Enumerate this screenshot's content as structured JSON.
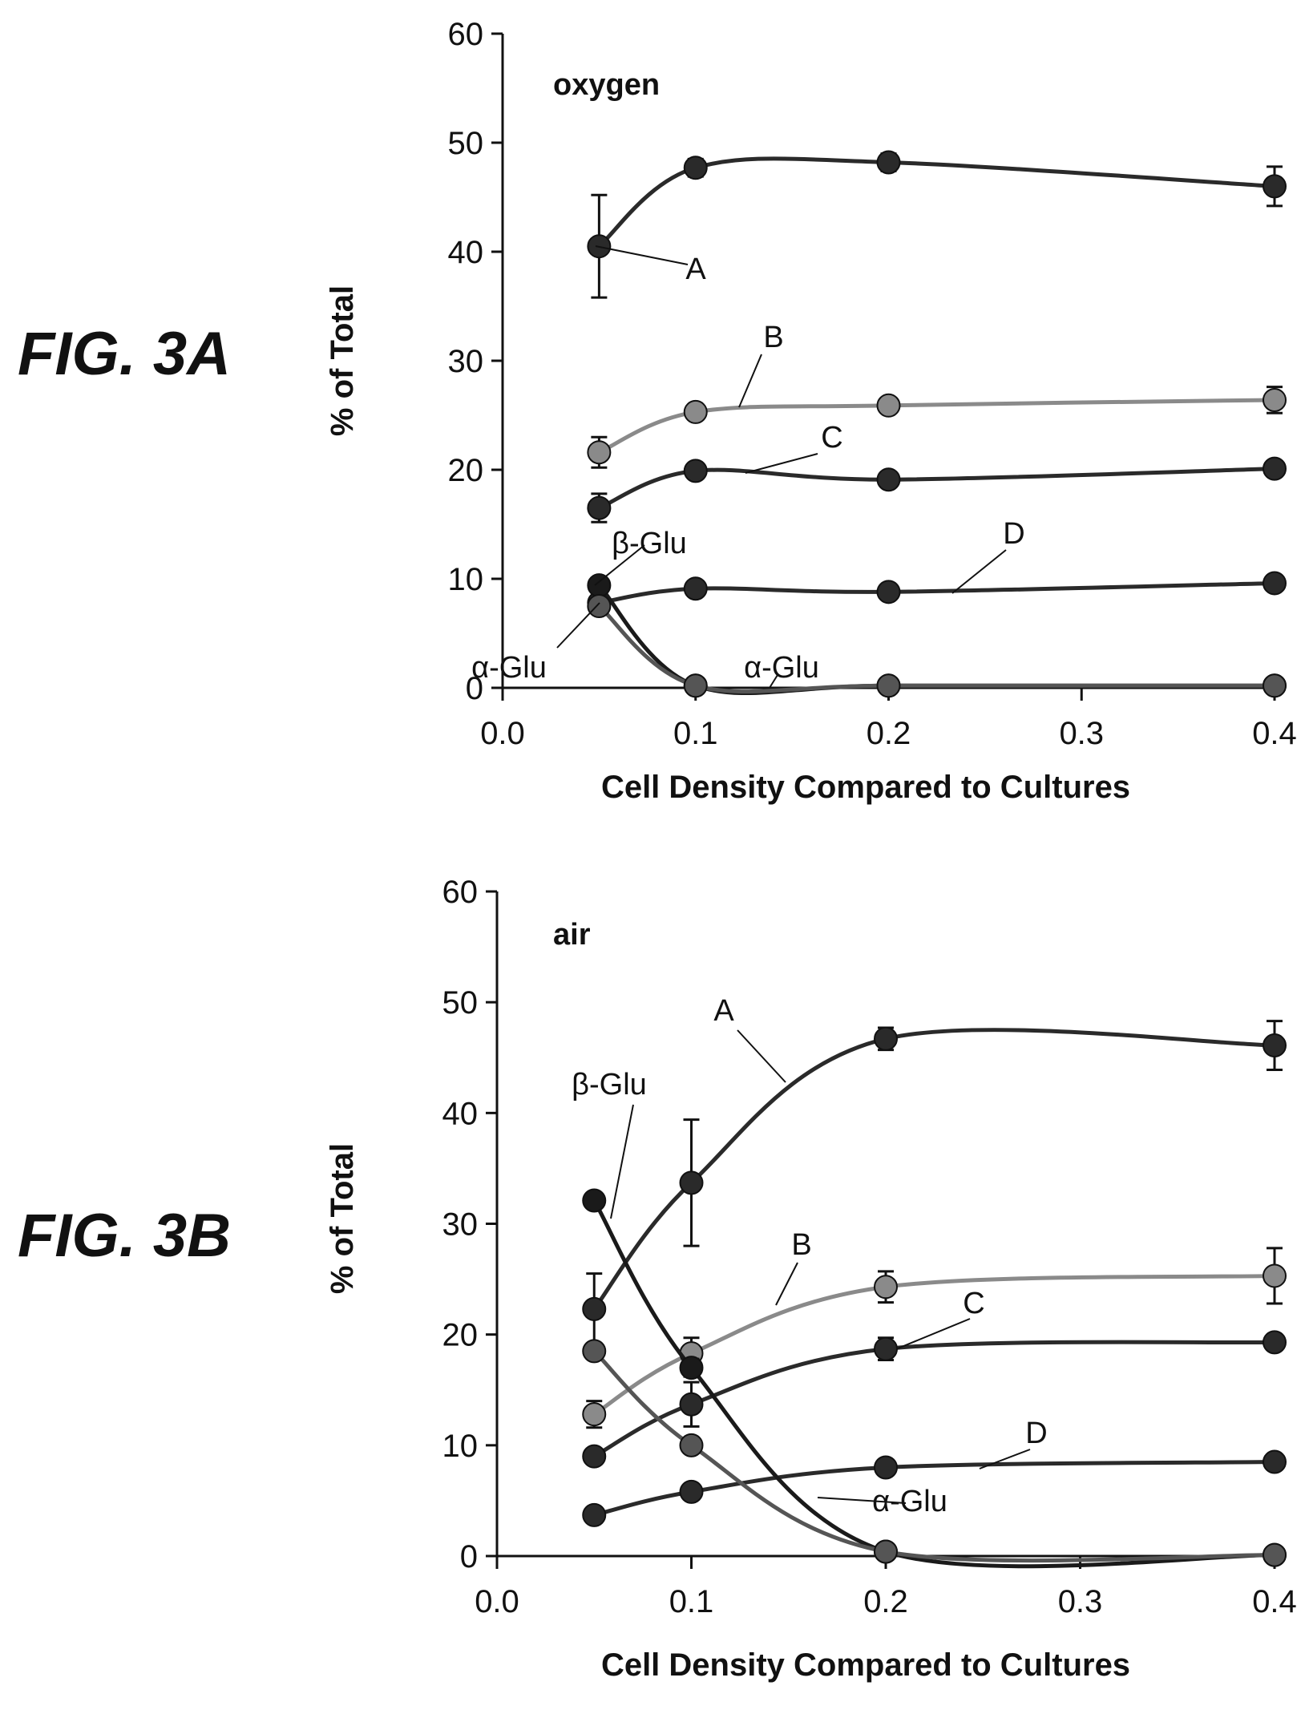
{
  "figures": {
    "a": {
      "label": "FIG. 3A"
    },
    "b": {
      "label": "FIG. 3B"
    }
  },
  "chart_data": [
    {
      "type": "line",
      "panel_label": "oxygen",
      "xlabel": "Cell Density Compared to Cultures",
      "ylabel": "% of Total",
      "xlim": [
        0,
        0.4
      ],
      "ylim": [
        0,
        60
      ],
      "xticks": [
        "0.0",
        "0.1",
        "0.2",
        "0.3",
        "0.4"
      ],
      "yticks": [
        "0",
        "10",
        "20",
        "30",
        "40",
        "50",
        "60"
      ],
      "grid": false,
      "legend": "none",
      "x": [
        0.05,
        0.1,
        0.2,
        0.4
      ],
      "series": [
        {
          "name": "A",
          "color": "#2a2a2a",
          "values": [
            40.5,
            47.7,
            48.2,
            46.0
          ],
          "errors": [
            4.7,
            0.8,
            0.8,
            1.8
          ]
        },
        {
          "name": "B",
          "color": "#8a8a8a",
          "values": [
            21.6,
            25.3,
            25.9,
            26.4
          ],
          "errors": [
            1.4,
            0.5,
            0.4,
            1.2
          ]
        },
        {
          "name": "C",
          "color": "#2a2a2a",
          "values": [
            16.5,
            19.9,
            19.1,
            20.1
          ],
          "errors": [
            1.3,
            0.5,
            0.4,
            0.5
          ]
        },
        {
          "name": "D",
          "color": "#2a2a2a",
          "values": [
            7.8,
            9.1,
            8.8,
            9.6
          ],
          "errors": [
            0.4,
            0.3,
            0.3,
            0.4
          ]
        },
        {
          "name": "β-Glu",
          "color": "#1a1a1a",
          "values": [
            9.4,
            0.2,
            0.2,
            0.2
          ],
          "errors": [
            0.3,
            0.1,
            0.1,
            0.1
          ]
        },
        {
          "name": "α-Glu",
          "color": "#555555",
          "values": [
            7.5,
            0.2,
            0.2,
            0.2
          ],
          "errors": [
            0.3,
            0.1,
            0.1,
            0.1
          ]
        }
      ]
    },
    {
      "type": "line",
      "panel_label": "air",
      "xlabel": "Cell Density Compared to Cultures",
      "ylabel": "% of Total",
      "xlim": [
        0,
        0.4
      ],
      "ylim": [
        0,
        60
      ],
      "xticks": [
        "0.0",
        "0.1",
        "0.2",
        "0.3",
        "0.4"
      ],
      "yticks": [
        "0",
        "10",
        "20",
        "30",
        "40",
        "50",
        "60"
      ],
      "grid": false,
      "legend": "none",
      "x": [
        0.05,
        0.1,
        0.2,
        0.4
      ],
      "series": [
        {
          "name": "A",
          "color": "#2a2a2a",
          "values": [
            22.3,
            33.7,
            46.7,
            46.1
          ],
          "errors": [
            3.2,
            5.7,
            1.0,
            2.2
          ]
        },
        {
          "name": "B",
          "color": "#8a8a8a",
          "values": [
            12.8,
            18.3,
            24.3,
            25.3
          ],
          "errors": [
            1.2,
            1.4,
            1.4,
            2.5
          ]
        },
        {
          "name": "C",
          "color": "#2a2a2a",
          "values": [
            9.0,
            13.7,
            18.7,
            19.3
          ],
          "errors": [
            0.5,
            2.0,
            1.0,
            0.5
          ]
        },
        {
          "name": "D",
          "color": "#2a2a2a",
          "values": [
            3.7,
            5.8,
            8.0,
            8.5
          ],
          "errors": [
            0.3,
            0.4,
            0.4,
            0.4
          ]
        },
        {
          "name": "β-Glu",
          "color": "#1a1a1a",
          "values": [
            32.1,
            17.0,
            0.4,
            0.1
          ],
          "errors": [
            0.5,
            0.8,
            0.2,
            0.1
          ]
        },
        {
          "name": "α-Glu",
          "color": "#555555",
          "values": [
            18.5,
            10.0,
            0.4,
            0.1
          ],
          "errors": [
            0.5,
            0.5,
            0.2,
            0.1
          ]
        }
      ]
    }
  ]
}
